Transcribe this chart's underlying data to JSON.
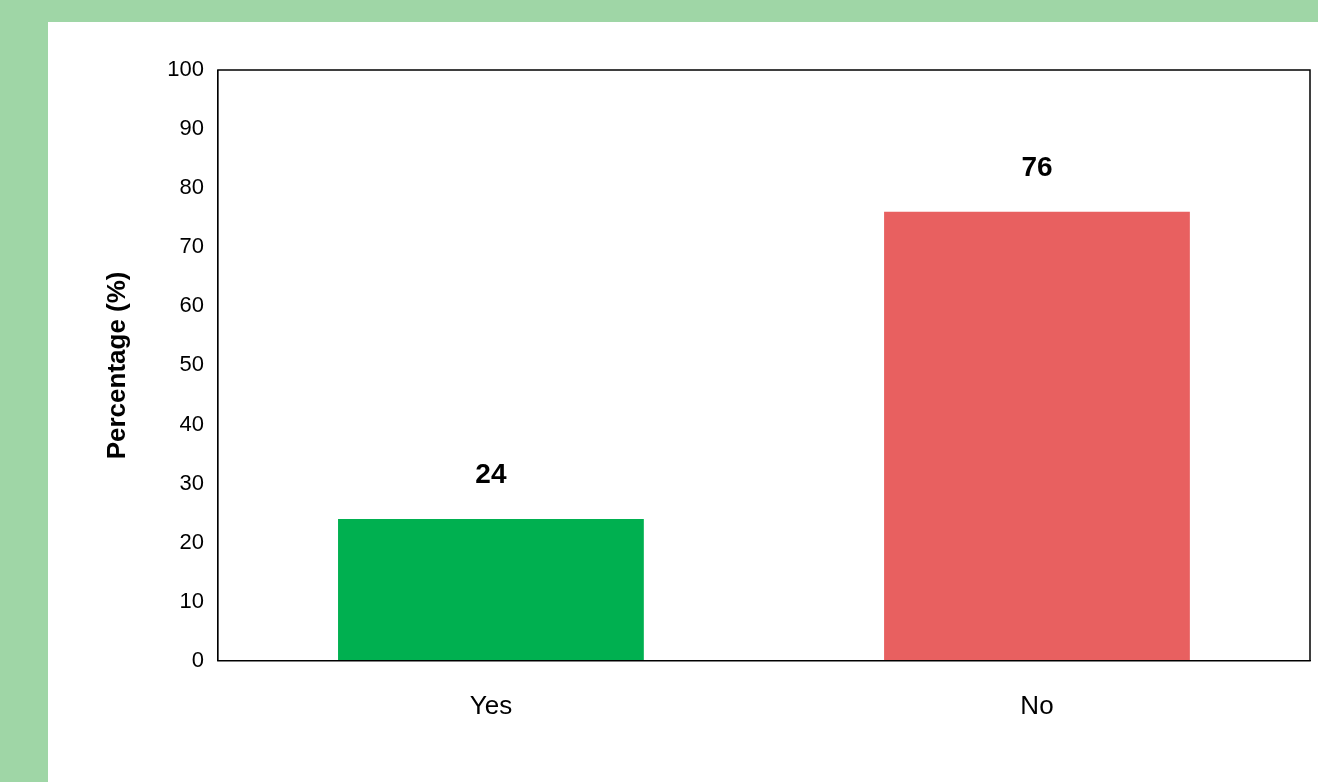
{
  "chart_data": {
    "type": "bar",
    "ylabel": "Percentage (%)",
    "categories": [
      "Yes",
      "No"
    ],
    "values": [
      24,
      76
    ],
    "colors": [
      "#00b050",
      "#e86060"
    ],
    "ylim": [
      0,
      100
    ],
    "yticks": [
      0,
      10,
      20,
      30,
      40,
      50,
      60,
      70,
      80,
      90,
      100
    ],
    "data_labels": true,
    "grid": false,
    "legend": false
  }
}
